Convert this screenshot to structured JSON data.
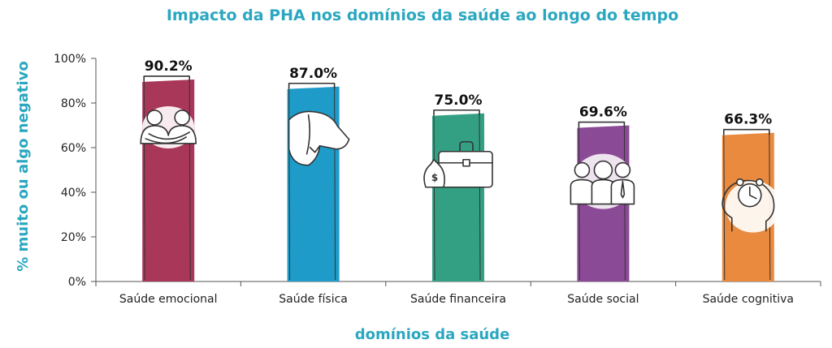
{
  "chart_data": {
    "type": "bar",
    "title": "Impacto da PHA nos domínios da saúde ao longo do tempo",
    "xlabel": "domínios da saúde",
    "ylabel": "% muito ou algo negativo",
    "categories": [
      "Saúde emocional",
      "Saúde física",
      "Saúde financeira",
      "Saúde social",
      "Saúde cognitiva"
    ],
    "values": [
      90.2,
      87.0,
      75.0,
      69.6,
      66.3
    ],
    "value_labels": [
      "90.2%",
      "87.0%",
      "75.0%",
      "69.6%",
      "66.3%"
    ],
    "bar_colors": [
      "#A8375A",
      "#1E9BC8",
      "#33A083",
      "#8B4A95",
      "#E98A3F"
    ],
    "ylim": [
      0,
      100
    ],
    "yticks": [
      "0%",
      "20%",
      "40%",
      "60%",
      "80%",
      "100%"
    ],
    "icons": [
      "hugging-people-icon",
      "back-pain-icon",
      "money-briefcase-icon",
      "team-people-icon",
      "head-clock-icon"
    ],
    "grid": false,
    "title_color": "#2AA7C0"
  }
}
